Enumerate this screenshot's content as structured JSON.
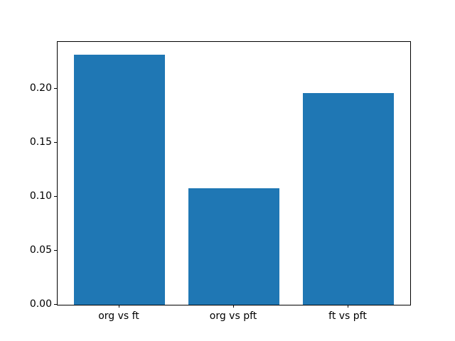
{
  "chart_data": {
    "type": "bar",
    "title": "",
    "xlabel": "",
    "ylabel": "",
    "categories": [
      "org vs ft",
      "org vs pft",
      "ft vs pft"
    ],
    "values": [
      0.232,
      0.108,
      0.196
    ],
    "bar_color": "#1f77b4",
    "bar_width": 0.8,
    "xlim": [
      -0.54,
      2.54
    ],
    "ylim": [
      0,
      0.2436
    ],
    "yticks": [
      0.0,
      0.05,
      0.1,
      0.15,
      0.2
    ],
    "ytick_labels": [
      "0.00",
      "0.05",
      "0.10",
      "0.15",
      "0.20"
    ],
    "grid": false,
    "legend": null,
    "spine_color": "#000000",
    "background_color": "#ffffff"
  }
}
